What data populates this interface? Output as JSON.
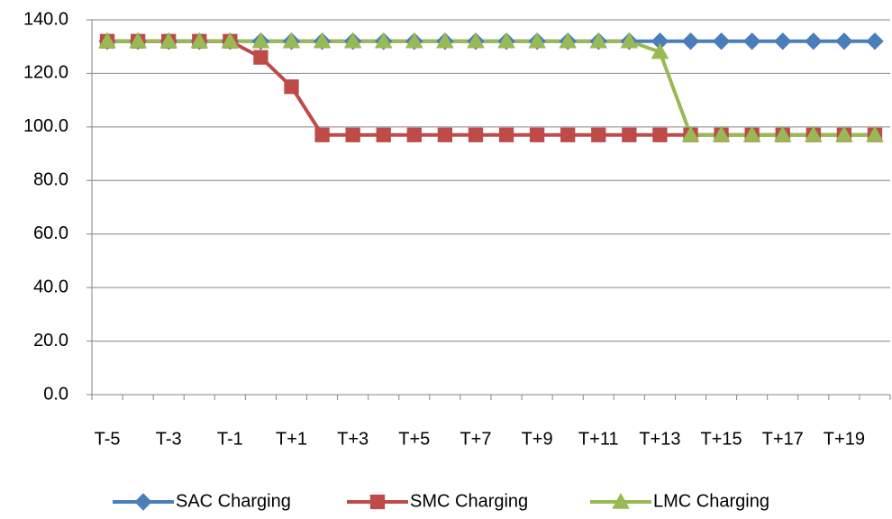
{
  "chart_data": {
    "type": "line",
    "categories": [
      "T-5",
      null,
      "T-3",
      null,
      "T-1",
      null,
      "T+1",
      null,
      "T+3",
      null,
      "T+5",
      null,
      "T+7",
      null,
      "T+9",
      null,
      "T+11",
      null,
      "T+13",
      null,
      "T+15",
      null,
      "T+17",
      null,
      "T+19",
      null
    ],
    "series": [
      {
        "name": "SAC Charging",
        "color": "#4a7ebb",
        "marker": "diamond",
        "values": [
          132,
          132,
          132,
          132,
          132,
          132,
          132,
          132,
          132,
          132,
          132,
          132,
          132,
          132,
          132,
          132,
          132,
          132,
          132,
          132,
          132,
          132,
          132,
          132,
          132,
          132
        ]
      },
      {
        "name": "SMC Charging",
        "color": "#be4b48",
        "marker": "square",
        "values": [
          132,
          132,
          132,
          132,
          132,
          126,
          115,
          97,
          97,
          97,
          97,
          97,
          97,
          97,
          97,
          97,
          97,
          97,
          97,
          97,
          97,
          97,
          97,
          97,
          97,
          97
        ]
      },
      {
        "name": "LMC Charging",
        "color": "#98b954",
        "marker": "triangle",
        "values": [
          132,
          132,
          132,
          132,
          132,
          132,
          132,
          132,
          132,
          132,
          132,
          132,
          132,
          132,
          132,
          132,
          132,
          132,
          128,
          97,
          97,
          97,
          97,
          97,
          97,
          97
        ]
      }
    ],
    "ylim": [
      0,
      140
    ],
    "yticks": [
      {
        "value": 0,
        "label": "0.0"
      },
      {
        "value": 20,
        "label": "20.0"
      },
      {
        "value": 40,
        "label": "40.0"
      },
      {
        "value": 60,
        "label": "60.0"
      },
      {
        "value": 80,
        "label": "80.0"
      },
      {
        "value": 100,
        "label": "100.0"
      },
      {
        "value": 120,
        "label": "120.0"
      },
      {
        "value": 140,
        "label": "140.0"
      }
    ],
    "grid": true,
    "legend": "bottom"
  }
}
